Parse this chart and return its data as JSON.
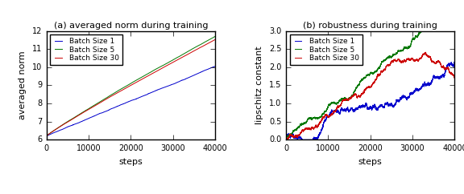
{
  "fig_width": 5.76,
  "fig_height": 2.42,
  "dpi": 100,
  "left_title": "(a) averaged norm during training",
  "right_title": "(b) robustness during training",
  "left_ylabel": "averaged norm",
  "right_ylabel": "lipschitz constant",
  "xlabel": "steps",
  "xlim": [
    0,
    40000
  ],
  "left_ylim": [
    6,
    12
  ],
  "right_ylim": [
    0.0,
    3.0
  ],
  "left_yticks": [
    6,
    7,
    8,
    9,
    10,
    11,
    12
  ],
  "right_yticks": [
    0.0,
    0.5,
    1.0,
    1.5,
    2.0,
    2.5,
    3.0
  ],
  "xticks": [
    0,
    10000,
    20000,
    30000,
    40000
  ],
  "colors": {
    "batch1": "#0000cc",
    "batch5": "#007700",
    "batch30": "#cc0000"
  },
  "legend_labels": [
    "Batch Size 1",
    "Batch Size 5",
    "Batch Size 30"
  ],
  "n_steps": 40000,
  "seed": 42,
  "style": "classic"
}
